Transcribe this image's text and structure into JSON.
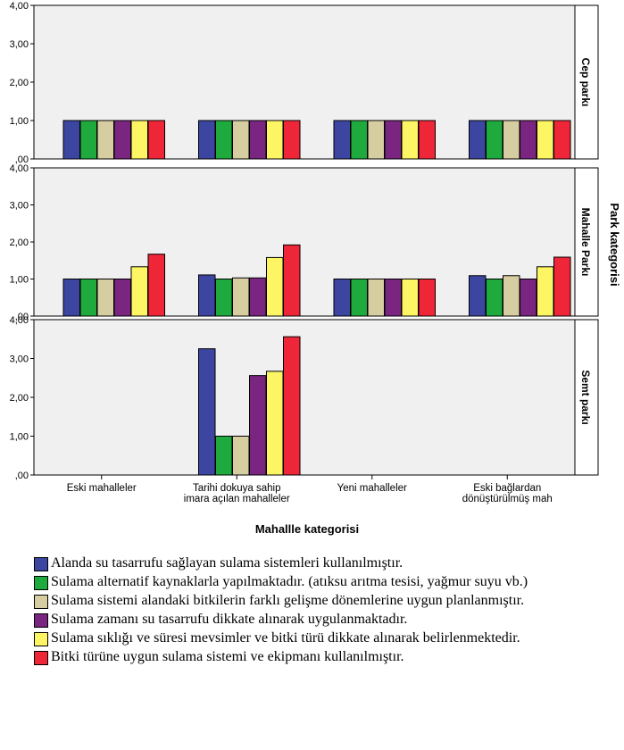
{
  "chart_data": {
    "type": "bar",
    "facet_title": "Park kategorisi",
    "xlabel": "Mahallle kategorisi",
    "ylim": [
      0,
      4
    ],
    "yticks": [
      "4,00",
      "3,00",
      "2,00",
      "1,00",
      ",00"
    ],
    "grid": false,
    "legend_position": "bottom",
    "categories": [
      [
        "Eski mahalleler"
      ],
      [
        "Tarihi dokuya sahip",
        "imara açılan mahalleler"
      ],
      [
        "Yeni mahalleler"
      ],
      [
        "Eski bağlardan",
        "dönüştürülmüş mah"
      ]
    ],
    "series": [
      {
        "name": "Alanda su tasarrufu sağlayan sulama sistemleri kullanılmıştır.",
        "color": "#3c46a0"
      },
      {
        "name": "Sulama alternatif kaynaklarla yapılmaktadır. (atıksu arıtma tesisi, yağmur suyu vb.)",
        "color": "#1eaa3c"
      },
      {
        "name": "Sulama sistemi alandaki bitkilerin farklı gelişme dönemlerine uygun planlanmıştır.",
        "color": "#d6cda0"
      },
      {
        "name": "Sulama zamanı su tasarrufu dikkate alınarak uygulanmaktadır.",
        "color": "#7a2580"
      },
      {
        "name": "Sulama sıklığı ve süresi mevsimler ve bitki türü dikkate alınarak belirlenmektedir.",
        "color": "#fdf563"
      },
      {
        "name": "Bitki türüne uygun sulama sistemi ve ekipmanı kullanılmıştır.",
        "color": "#ee2638"
      }
    ],
    "panels": [
      {
        "label": "Cep parkı",
        "values": [
          [
            1.0,
            1.0,
            1.0,
            1.0,
            1.0,
            1.0
          ],
          [
            1.0,
            1.0,
            1.0,
            1.0,
            1.0,
            1.0
          ],
          [
            1.0,
            1.0,
            1.0,
            1.0,
            1.0,
            1.0
          ],
          [
            1.0,
            1.0,
            1.0,
            1.0,
            1.0,
            1.0
          ]
        ]
      },
      {
        "label": "Mahalle Parkı",
        "values": [
          [
            1.0,
            1.0,
            1.0,
            1.0,
            1.33,
            1.67
          ],
          [
            1.11,
            1.0,
            1.03,
            1.03,
            1.58,
            1.92
          ],
          [
            1.0,
            1.0,
            1.0,
            1.0,
            1.0,
            1.0
          ],
          [
            1.09,
            1.0,
            1.09,
            1.0,
            1.33,
            1.59
          ]
        ]
      },
      {
        "label": "Semt parkı",
        "values": [
          [
            null,
            null,
            null,
            null,
            null,
            null
          ],
          [
            3.25,
            1.0,
            1.0,
            2.56,
            2.67,
            3.56
          ],
          [
            null,
            null,
            null,
            null,
            null,
            null
          ],
          [
            null,
            null,
            null,
            null,
            null,
            null
          ]
        ]
      }
    ]
  }
}
